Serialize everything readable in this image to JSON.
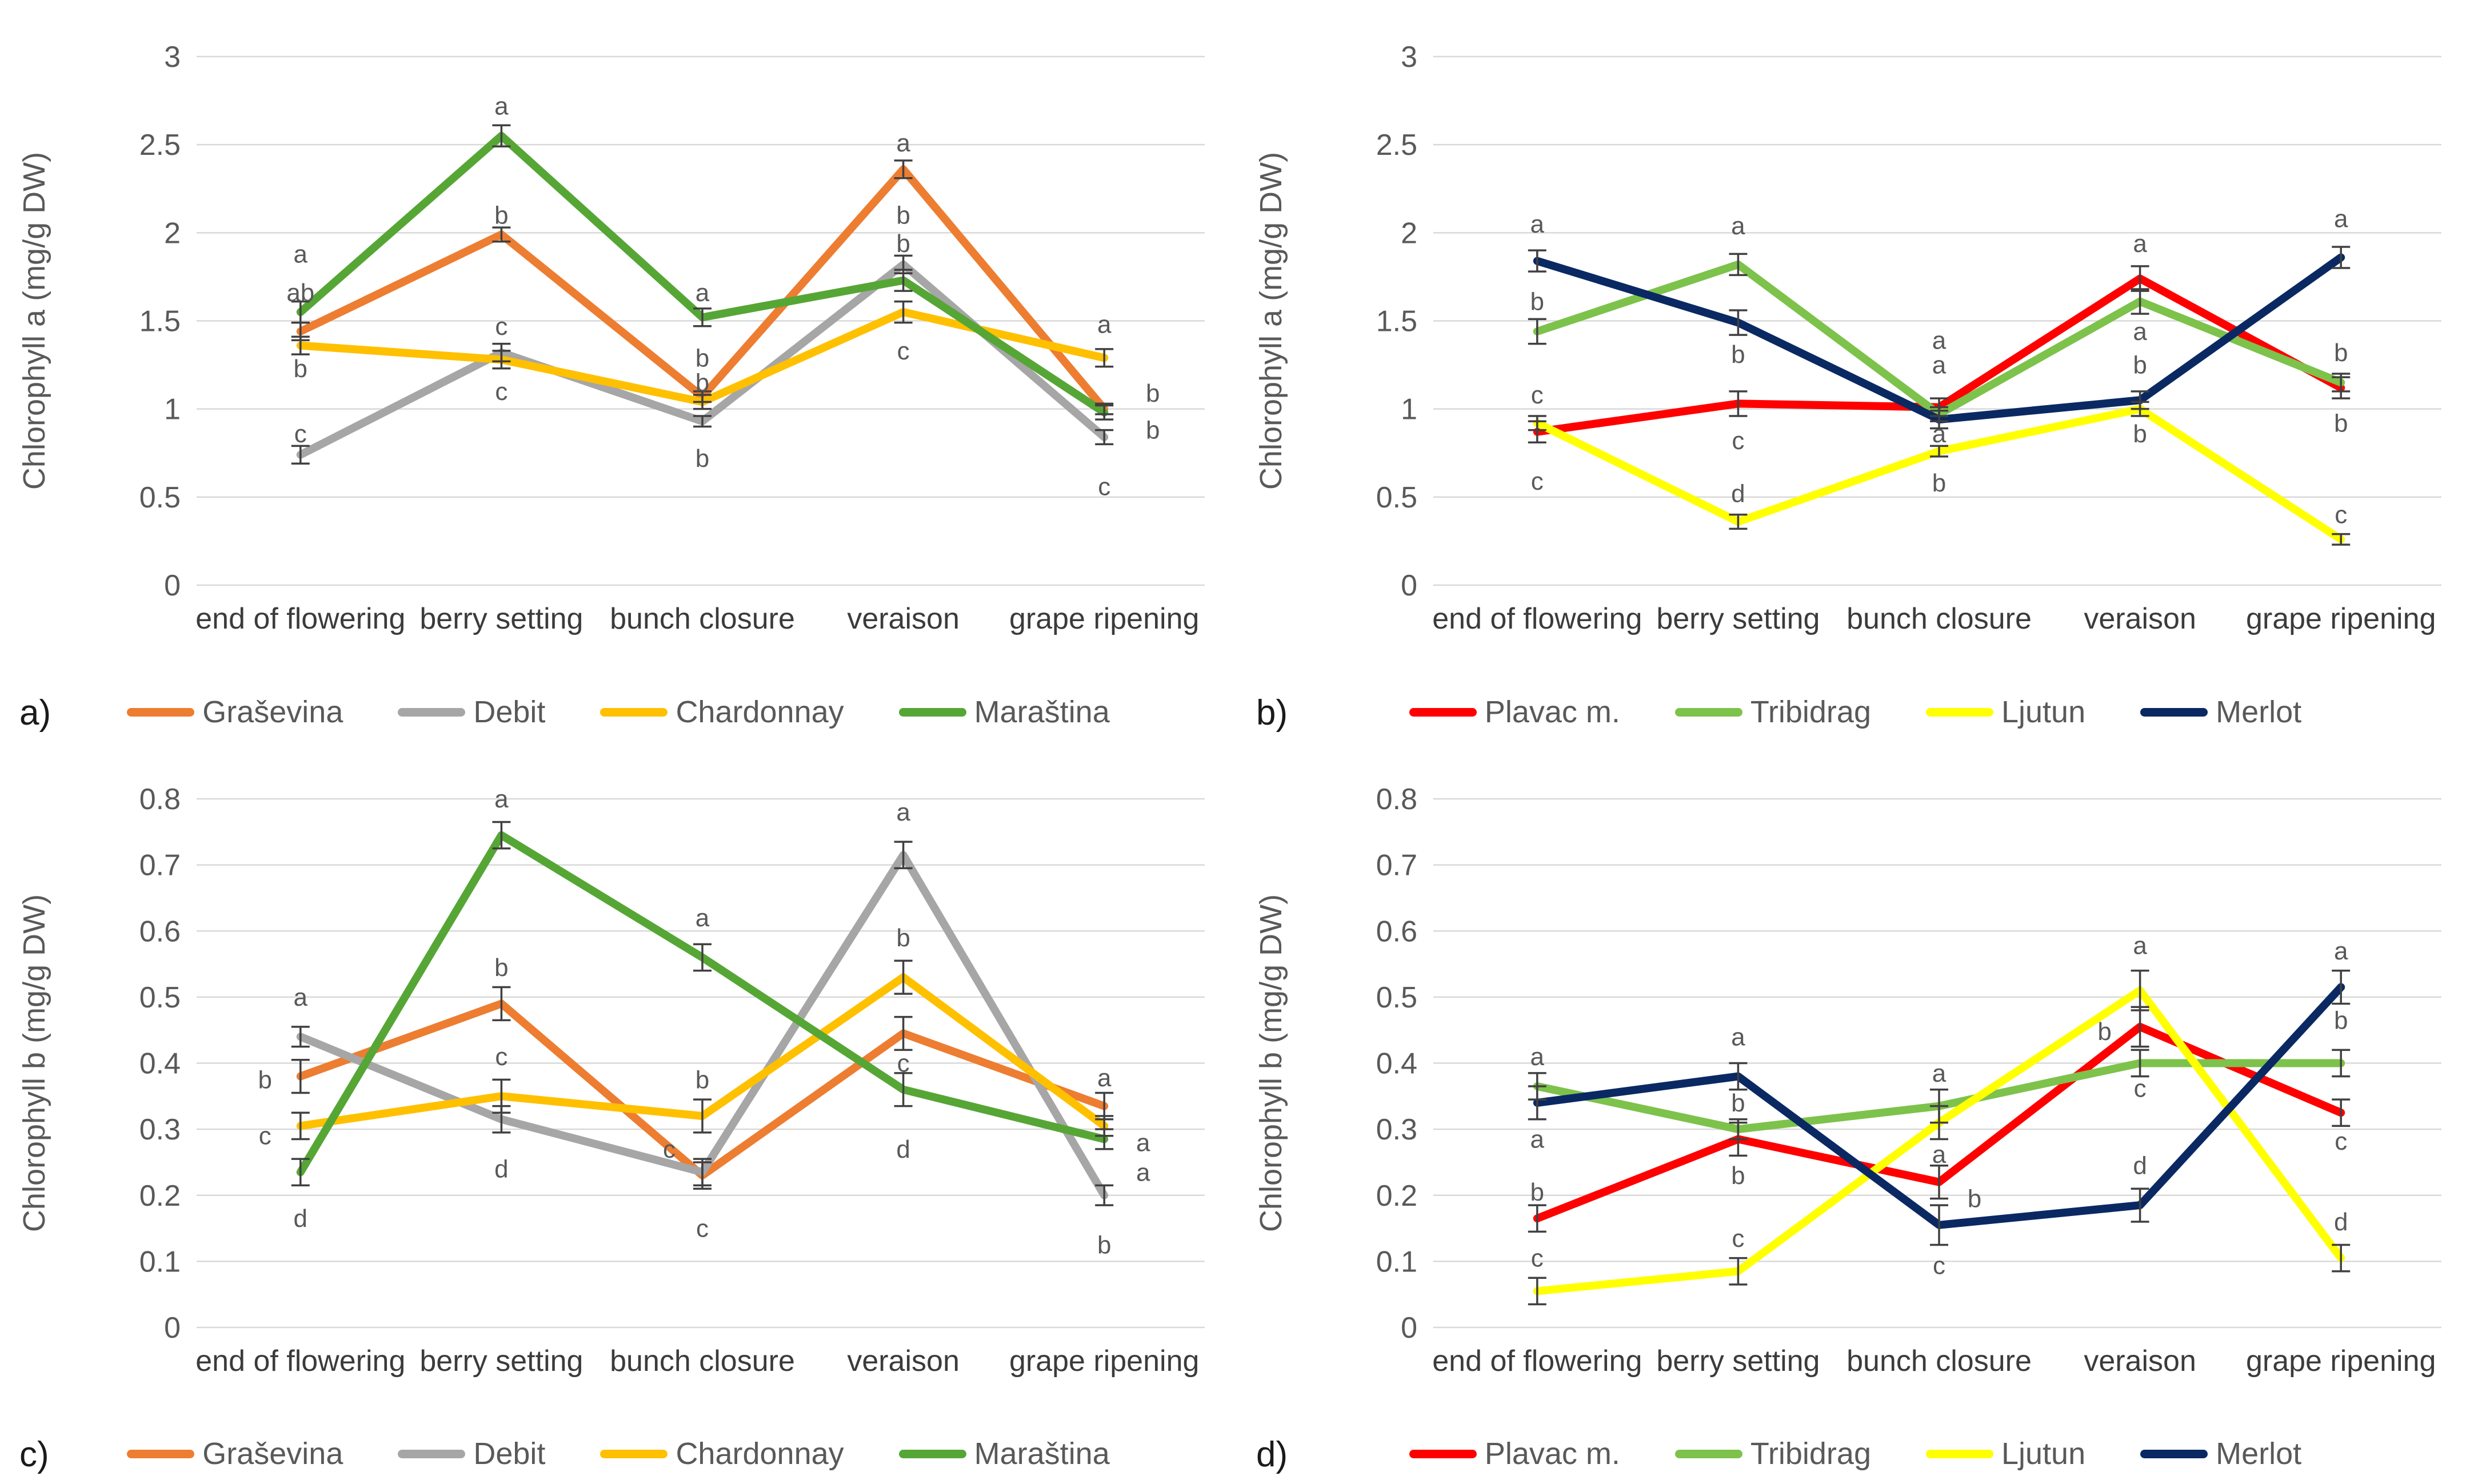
{
  "figure": {
    "background": "#ffffff",
    "gridline_color": "#D9D9D9",
    "error_bar_color": "#404040",
    "letter_color": "#595959",
    "tick_label_color": "#595959",
    "category_label_color": "#3B3B3B"
  },
  "chart_data": [
    {
      "type": "line",
      "panel_label": "a)",
      "title": "",
      "xlabel": "",
      "ylabel": "Chlorophyll a (mg/g DW)",
      "ylim": [
        0,
        3
      ],
      "ystep": 0.5,
      "grid": true,
      "legend_position": "bottom",
      "categories": [
        "end of flowering",
        "berry setting",
        "bunch closure",
        "veraison",
        "grape ripening"
      ],
      "series": [
        {
          "name": "Graševina",
          "color": "#ED7D31",
          "values": [
            1.44,
            1.99,
            1.07,
            2.36,
            1.0
          ],
          "err": [
            0.05,
            0.04,
            0.03,
            0.05,
            0.03
          ],
          "letters": [
            {
              "t": "ab",
              "y": 1.66
            },
            {
              "t": "b",
              "y": 2.1
            },
            {
              "t": "b",
              "y": 1.29
            },
            {
              "t": "a",
              "y": 2.51
            },
            {
              "t": "b",
              "y": 1.09,
              "dx": 85
            }
          ]
        },
        {
          "name": "Debit",
          "color": "#A6A6A6",
          "values": [
            0.74,
            1.32,
            0.93,
            1.82,
            0.84
          ],
          "err": [
            0.05,
            0.05,
            0.03,
            0.05,
            0.04
          ],
          "letters": [
            {
              "t": "c",
              "y": 0.86
            },
            {
              "t": "c",
              "y": 1.47
            },
            {
              "t": "b",
              "y": 0.72
            },
            {
              "t": "b",
              "y": 2.1
            },
            {
              "t": "c",
              "y": 0.56
            }
          ]
        },
        {
          "name": "Chardonnay",
          "color": "#FFC000",
          "values": [
            1.36,
            1.28,
            1.04,
            1.55,
            1.29
          ],
          "err": [
            0.05,
            0.05,
            0.04,
            0.06,
            0.05
          ],
          "letters": [
            {
              "t": "b",
              "y": 1.23
            },
            {
              "t": "c",
              "y": 1.1
            },
            {
              "t": "b",
              "y": 1.15
            },
            {
              "t": "c",
              "y": 1.33
            },
            {
              "t": "a",
              "y": 1.48
            }
          ]
        },
        {
          "name": "Maraština",
          "color": "#56A636",
          "values": [
            1.55,
            2.55,
            1.52,
            1.73,
            0.98
          ],
          "err": [
            0.06,
            0.06,
            0.05,
            0.06,
            0.04
          ],
          "letters": [
            {
              "t": "a",
              "y": 1.88
            },
            {
              "t": "a",
              "y": 2.72
            },
            {
              "t": "a",
              "y": 1.66
            },
            {
              "t": "b",
              "y": 1.94
            },
            {
              "t": "b",
              "y": 0.88,
              "dx": 85
            }
          ]
        }
      ]
    },
    {
      "type": "line",
      "panel_label": "b)",
      "title": "",
      "xlabel": "",
      "ylabel": "Chlorophyll a (mg/g DW)",
      "ylim": [
        0,
        3
      ],
      "ystep": 0.5,
      "grid": true,
      "legend_position": "bottom",
      "categories": [
        "end of flowering",
        "berry setting",
        "bunch closure",
        "veraison",
        "grape ripening"
      ],
      "series": [
        {
          "name": "Plavac m.",
          "color": "#FE0000",
          "values": [
            0.87,
            1.03,
            1.01,
            1.74,
            1.12
          ],
          "err": [
            0.06,
            0.07,
            0.05,
            0.07,
            0.06
          ],
          "letters": [
            {
              "t": "c",
              "y": 0.59
            },
            {
              "t": "c",
              "y": 0.82
            },
            {
              "t": "a",
              "y": 1.39
            },
            {
              "t": "a",
              "y": 1.94
            },
            {
              "t": "b",
              "y": 0.92
            }
          ]
        },
        {
          "name": "Tribidrag",
          "color": "#7DC24B",
          "values": [
            1.44,
            1.82,
            0.97,
            1.61,
            1.15
          ],
          "err": [
            0.07,
            0.06,
            0.04,
            0.07,
            0.05
          ],
          "letters": [
            {
              "t": "b",
              "y": 1.61
            },
            {
              "t": "a",
              "y": 2.04
            },
            {
              "t": "a",
              "y": 1.25
            },
            {
              "t": "a",
              "y": 1.44
            },
            {
              "t": "b",
              "y": 1.32
            }
          ]
        },
        {
          "name": "Ljutun",
          "color": "#FFFF00",
          "values": [
            0.92,
            0.36,
            0.76,
            1.0,
            0.26
          ],
          "err": [
            0.04,
            0.04,
            0.03,
            0.04,
            0.03
          ],
          "letters": [
            {
              "t": "c",
              "y": 1.08
            },
            {
              "t": "d",
              "y": 0.52
            },
            {
              "t": "b",
              "y": 0.58
            },
            {
              "t": "b",
              "y": 0.86
            },
            {
              "t": "c",
              "y": 0.4
            }
          ]
        },
        {
          "name": "Merlot",
          "color": "#0A2963",
          "values": [
            1.84,
            1.49,
            0.94,
            1.05,
            1.86
          ],
          "err": [
            0.06,
            0.07,
            0.05,
            0.05,
            0.06
          ],
          "letters": [
            {
              "t": "a",
              "y": 2.05
            },
            {
              "t": "b",
              "y": 1.31
            },
            {
              "t": "a",
              "y": 0.86
            },
            {
              "t": "b",
              "y": 1.25
            },
            {
              "t": "a",
              "y": 2.08
            }
          ]
        }
      ]
    },
    {
      "type": "line",
      "panel_label": "c)",
      "title": "",
      "xlabel": "",
      "ylabel": "Chlorophyll b (mg/g DW)",
      "ylim": [
        0,
        0.8
      ],
      "ystep": 0.1,
      "grid": true,
      "legend_position": "bottom",
      "categories": [
        "end of flowering",
        "berry setting",
        "bunch closure",
        "veraison",
        "grape ripening"
      ],
      "series": [
        {
          "name": "Graševina",
          "color": "#ED7D31",
          "values": [
            0.38,
            0.49,
            0.23,
            0.445,
            0.335
          ],
          "err": [
            0.025,
            0.025,
            0.02,
            0.025,
            0.02
          ],
          "letters": [
            {
              "t": "b",
              "y": 0.375,
              "dx": -62
            },
            {
              "t": "b",
              "y": 0.545
            },
            {
              "t": "c",
              "y": 0.15
            },
            {
              "t": "c",
              "y": 0.4
            },
            {
              "t": "a",
              "y": 0.378
            }
          ]
        },
        {
          "name": "Debit",
          "color": "#A6A6A6",
          "values": [
            0.44,
            0.315,
            0.235,
            0.715,
            0.2
          ],
          "err": [
            0.015,
            0.02,
            0.02,
            0.02,
            0.015
          ],
          "letters": [
            {
              "t": "a",
              "y": 0.5
            },
            {
              "t": "d",
              "y": 0.24
            },
            {
              "t": "c",
              "y": 0.27,
              "dx": -58
            },
            {
              "t": "a",
              "y": 0.78
            },
            {
              "t": "b",
              "y": 0.125
            }
          ]
        },
        {
          "name": "Chardonnay",
          "color": "#FFC000",
          "values": [
            0.305,
            0.35,
            0.32,
            0.53,
            0.305
          ],
          "err": [
            0.02,
            0.025,
            0.025,
            0.025,
            0.015
          ],
          "letters": [
            {
              "t": "c",
              "y": 0.29,
              "dx": -62
            },
            {
              "t": "c",
              "y": 0.41
            },
            {
              "t": "b",
              "y": 0.375
            },
            {
              "t": "b",
              "y": 0.59
            },
            {
              "t": "a",
              "y": 0.28,
              "dx": 68
            }
          ]
        },
        {
          "name": "Maraština",
          "color": "#56A636",
          "values": [
            0.235,
            0.745,
            0.56,
            0.36,
            0.285
          ],
          "err": [
            0.02,
            0.02,
            0.02,
            0.025,
            0.015
          ],
          "letters": [
            {
              "t": "d",
              "y": 0.165
            },
            {
              "t": "a",
              "y": 0.8
            },
            {
              "t": "a",
              "y": 0.62
            },
            {
              "t": "d",
              "y": 0.27
            },
            {
              "t": "a",
              "y": 0.235,
              "dx": 68
            }
          ]
        }
      ]
    },
    {
      "type": "line",
      "panel_label": "d)",
      "title": "",
      "xlabel": "",
      "ylabel": "Chlorophyll b (mg/g DW)",
      "ylim": [
        0,
        0.8
      ],
      "ystep": 0.1,
      "grid": true,
      "legend_position": "bottom",
      "categories": [
        "end of flowering",
        "berry setting",
        "bunch closure",
        "veraison",
        "grape ripening"
      ],
      "series": [
        {
          "name": "Plavac m.",
          "color": "#FE0000",
          "values": [
            0.165,
            0.285,
            0.22,
            0.455,
            0.325
          ],
          "err": [
            0.02,
            0.025,
            0.025,
            0.03,
            0.02
          ],
          "letters": [
            {
              "t": "b",
              "y": 0.205
            },
            {
              "t": "b",
              "y": 0.23
            },
            {
              "t": "b",
              "y": 0.195,
              "dx": 62
            },
            {
              "t": "b",
              "y": 0.448,
              "dx": -62
            },
            {
              "t": "c",
              "y": 0.282
            }
          ]
        },
        {
          "name": "Tribidrag",
          "color": "#7DC24B",
          "values": [
            0.365,
            0.3,
            0.335,
            0.4,
            0.4
          ],
          "err": [
            0.02,
            0.015,
            0.025,
            0.02,
            0.02
          ],
          "letters": [
            {
              "t": "a",
              "y": 0.41
            },
            {
              "t": "b",
              "y": 0.34
            },
            {
              "t": "a",
              "y": 0.385
            },
            {
              "t": "c",
              "y": 0.362
            },
            {
              "t": "b",
              "y": 0.465
            }
          ]
        },
        {
          "name": "Ljutun",
          "color": "#FFFF00",
          "values": [
            0.055,
            0.085,
            0.31,
            0.51,
            0.105
          ],
          "err": [
            0.02,
            0.02,
            0.025,
            0.03,
            0.02
          ],
          "letters": [
            {
              "t": "c",
              "y": 0.105
            },
            {
              "t": "c",
              "y": 0.135
            },
            {
              "t": "a",
              "y": 0.262
            },
            {
              "t": "a",
              "y": 0.578
            },
            {
              "t": "d",
              "y": 0.16
            }
          ]
        },
        {
          "name": "Merlot",
          "color": "#0A2963",
          "values": [
            0.34,
            0.38,
            0.155,
            0.185,
            0.515
          ],
          "err": [
            0.025,
            0.02,
            0.03,
            0.025,
            0.025
          ],
          "letters": [
            {
              "t": "a",
              "y": 0.285
            },
            {
              "t": "a",
              "y": 0.44
            },
            {
              "t": "c",
              "y": 0.094
            },
            {
              "t": "d",
              "y": 0.245
            },
            {
              "t": "a",
              "y": 0.57
            }
          ]
        }
      ]
    }
  ]
}
